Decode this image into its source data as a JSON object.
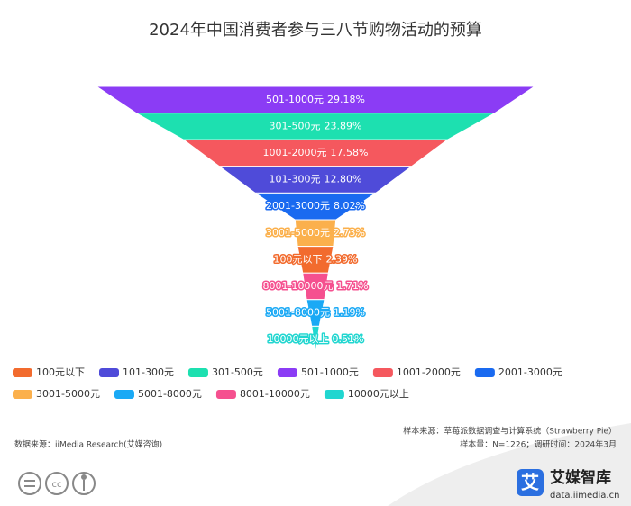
{
  "chart_data": {
    "type": "funnel",
    "title": "2024年中国消费者参与三八节购物活动的预算",
    "categories": [
      "501-1000元",
      "301-500元",
      "1001-2000元",
      "101-300元",
      "2001-3000元",
      "3001-5000元",
      "100元以下",
      "8001-10000元",
      "5001-8000元",
      "10000元以上"
    ],
    "values": [
      29.18,
      23.89,
      17.58,
      12.8,
      8.02,
      2.73,
      2.39,
      1.71,
      1.19,
      0.51
    ],
    "value_labels": [
      "29.18%",
      "23.89%",
      "17.58%",
      "12.80%",
      "8.02%",
      "2.73%",
      "2.39%",
      "1.71%",
      "1.19%",
      "0.51%"
    ],
    "colors": [
      "#8b3cf5",
      "#1de0b0",
      "#f5585e",
      "#4f4bd9",
      "#1a6af0",
      "#fbb04c",
      "#f26b2e",
      "#f5508f",
      "#1aa9f5",
      "#21d6d0"
    ],
    "legend": [
      {
        "name": "100元以下",
        "color": "#f26b2e"
      },
      {
        "name": "101-300元",
        "color": "#4f4bd9"
      },
      {
        "name": "301-500元",
        "color": "#1de0b0"
      },
      {
        "name": "501-1000元",
        "color": "#8b3cf5"
      },
      {
        "name": "1001-2000元",
        "color": "#f5585e"
      },
      {
        "name": "2001-3000元",
        "color": "#1a6af0"
      },
      {
        "name": "3001-5000元",
        "color": "#fbb04c"
      },
      {
        "name": "5001-8000元",
        "color": "#1aa9f5"
      },
      {
        "name": "8001-10000元",
        "color": "#f5508f"
      },
      {
        "name": "10000元以上",
        "color": "#21d6d0"
      }
    ]
  },
  "footer": {
    "sample_source": "样本来源：草莓派数据调查与计算系统（Strawberry Pie）",
    "sample_size": "样本量：N=1226；调研时间：2024年3月",
    "data_source": "数据来源：iiMedia Research(艾媒咨询)",
    "brand": "艾媒智库",
    "url": "data.iimedia.cn",
    "logo_char": "艾"
  }
}
